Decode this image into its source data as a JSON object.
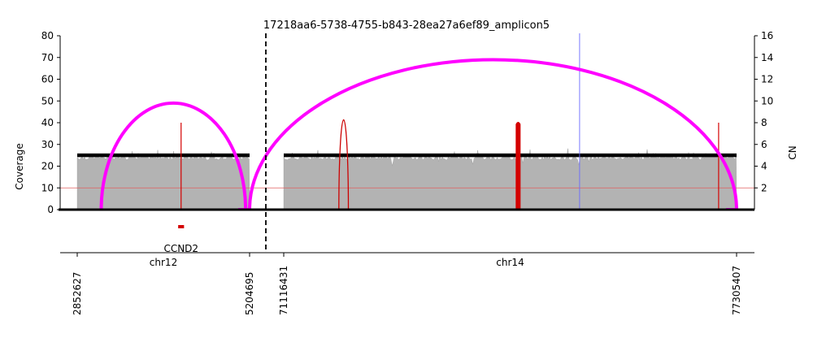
{
  "chart_data": {
    "type": "line",
    "title": "17218aa6-5738-4755-b843-28ea27a6ef89_amplicon5",
    "ylabel": "Coverage",
    "y2label": "CN",
    "ylim": [
      0,
      80
    ],
    "y2lim": [
      0,
      16
    ],
    "yticks": [
      0,
      10,
      20,
      30,
      40,
      50,
      60,
      70,
      80
    ],
    "y2ticks": [
      2,
      4,
      6,
      8,
      10,
      12,
      14,
      16
    ],
    "grid": false,
    "segments": [
      {
        "chromosome": "chr12",
        "start": 2852627,
        "end": 5204695,
        "start_label": "2852627",
        "end_label": "5204695"
      },
      {
        "chromosome": "chr14",
        "start": 71116431,
        "end": 77305407,
        "start_label": "71116431",
        "end_label": "77305407"
      }
    ],
    "copy_number": [
      {
        "chromosome": "chr12",
        "start": 2852627,
        "end": 5204695,
        "cn": 5
      },
      {
        "chromosome": "chr14",
        "start": 71116431,
        "end": 77305407,
        "cn": 5
      }
    ],
    "coverage_mean": [
      {
        "chromosome": "chr12",
        "value": 24
      },
      {
        "chromosome": "chr14",
        "value": 24
      }
    ],
    "cn_reference_line": 2,
    "discordant_edges": [
      {
        "chr1": "chr12",
        "pos1": 3180000,
        "chr2": "chr12",
        "pos2": 5150000,
        "height": 49,
        "color": "#ff00ff"
      },
      {
        "chr1": "chr12",
        "pos1": 5204695,
        "chr2": "chr14",
        "pos2": 77305407,
        "height": 69,
        "color": "#ff00ff"
      },
      {
        "chr1": "chr14",
        "pos1": 71870000,
        "chr2": "chr14",
        "pos2": 72000000,
        "height": 41,
        "color": "#cc0000"
      }
    ],
    "breakpoint_lines": [
      {
        "chromosome": "chr12",
        "pos": 4270000,
        "height": 40
      },
      {
        "chromosome": "chr14",
        "pos": 74320000,
        "height": 40
      },
      {
        "chromosome": "chr14",
        "pos": 77060000,
        "height": 40
      }
    ],
    "foldback": {
      "chromosome": "chr14",
      "pos": 74320000,
      "height": 40
    },
    "blue_marker": {
      "chromosome": "chr14",
      "pos": 75160000
    },
    "genes": [
      {
        "name": "CCND2",
        "chromosome": "chr12",
        "start": 4230000,
        "end": 4310000
      }
    ]
  }
}
